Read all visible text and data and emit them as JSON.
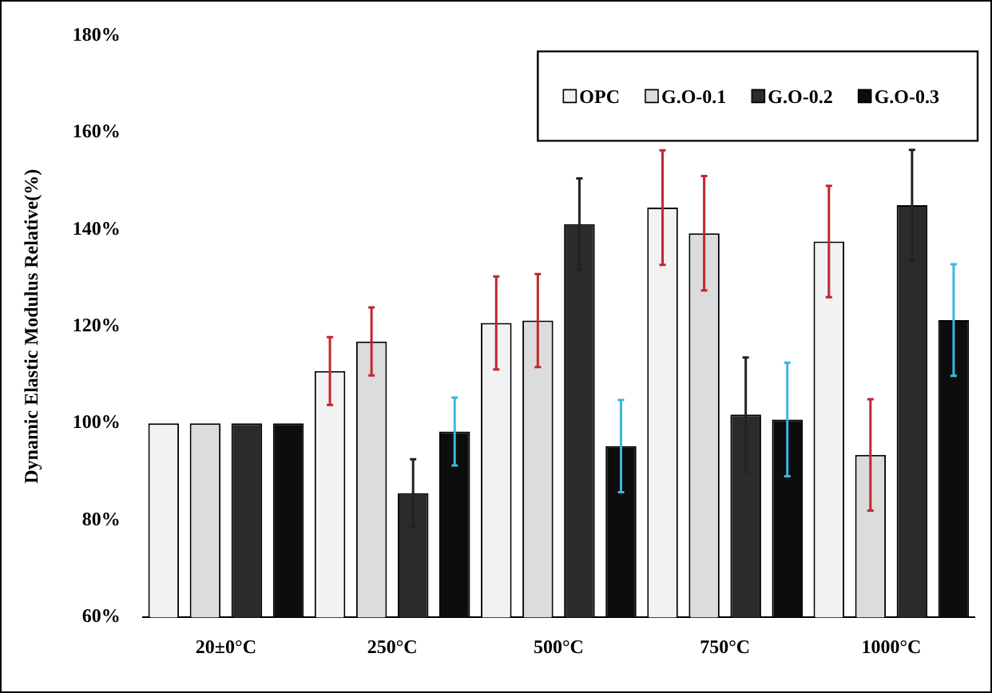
{
  "chart_data": {
    "type": "bar",
    "ylabel": "Dynamic Elastic Modulus Relative(%)",
    "categories": [
      "20±0°C",
      "250°C",
      "500°C",
      "750°C",
      "1000°C"
    ],
    "series": [
      {
        "name": "OPC",
        "color": "#f2f2f2",
        "values": [
          100,
          110.8,
          120.7,
          144.5,
          137.5
        ],
        "errors": [
          null,
          7,
          9.6,
          11.8,
          11.5
        ]
      },
      {
        "name": "G.O-0.1",
        "color": "#dcdcdc",
        "values": [
          100,
          116.9,
          121.2,
          139.2,
          93.5
        ],
        "errors": [
          null,
          7,
          9.6,
          11.8,
          11.5
        ]
      },
      {
        "name": "G.O-0.2",
        "color": "#2b2b2b",
        "values": [
          100,
          85.6,
          141.1,
          101.8,
          145
        ],
        "errors": [
          null,
          7,
          9.4,
          11.8,
          11.4
        ]
      },
      {
        "name": "G.O-0.3",
        "color": "#0d0d0d",
        "values": [
          100,
          98.3,
          95.3,
          100.8,
          121.3
        ],
        "errors": [
          null,
          7,
          9.5,
          11.7,
          11.5
        ]
      }
    ],
    "ylim": [
      60,
      180
    ],
    "yticks": [
      {
        "value": 60,
        "label": "60%"
      },
      {
        "value": 80,
        "label": "80%"
      },
      {
        "value": 100,
        "label": "100%"
      },
      {
        "value": 120,
        "label": "120%"
      },
      {
        "value": 140,
        "label": "140%"
      },
      {
        "value": 160,
        "label": "160%"
      },
      {
        "value": 180,
        "label": "180%"
      }
    ],
    "grid": false,
    "legend": "top right"
  }
}
